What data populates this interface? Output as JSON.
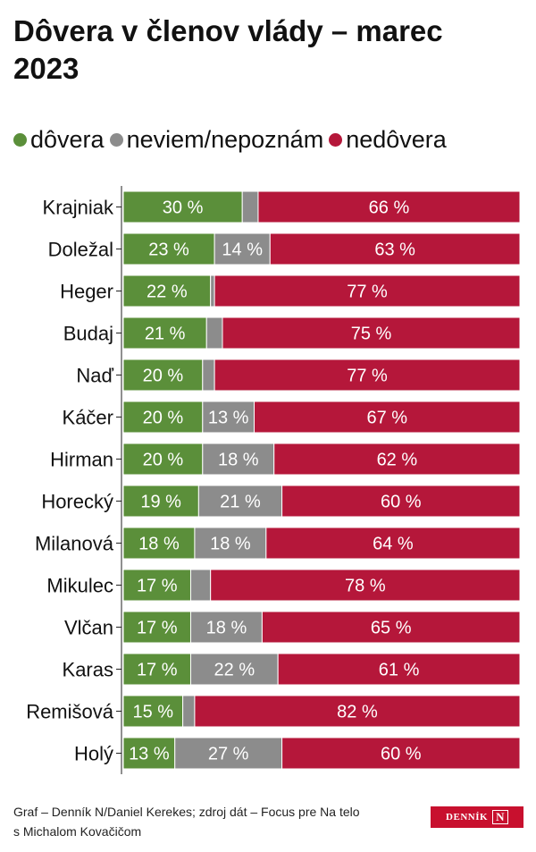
{
  "chart_data": {
    "type": "bar",
    "orientation": "horizontal",
    "stacked": true,
    "title": "Dôvera v členov vlády – marec 2023",
    "categories": [
      "Krajniak",
      "Doležal",
      "Heger",
      "Budaj",
      "Naď",
      "Káčer",
      "Hirman",
      "Horecký",
      "Milanová",
      "Mikulec",
      "Vlčan",
      "Karas",
      "Remišová",
      "Holý"
    ],
    "series": [
      {
        "name": "dôvera",
        "color": "#5b8f3a",
        "values": [
          30,
          23,
          22,
          21,
          20,
          20,
          20,
          19,
          18,
          17,
          17,
          17,
          15,
          13
        ]
      },
      {
        "name": "neviem/nepoznám",
        "color": "#8c8c8c",
        "values": [
          4,
          14,
          1,
          4,
          3,
          13,
          18,
          21,
          18,
          5,
          18,
          22,
          3,
          27
        ]
      },
      {
        "name": "nedôvera",
        "color": "#b5173a",
        "values": [
          66,
          63,
          77,
          75,
          77,
          67,
          62,
          60,
          64,
          78,
          65,
          61,
          82,
          60
        ]
      }
    ],
    "value_suffix": " %",
    "xlim": [
      0,
      100
    ],
    "legend_position": "top",
    "grid": false
  },
  "footer": {
    "credit_line1": "Graf – Denník N/Daniel Kerekes; zdroj dát – Focus pre Na telo",
    "credit_line2": "s Michalom Kovačičom"
  },
  "logo": {
    "text": "DENNÍK",
    "mark": "N"
  }
}
